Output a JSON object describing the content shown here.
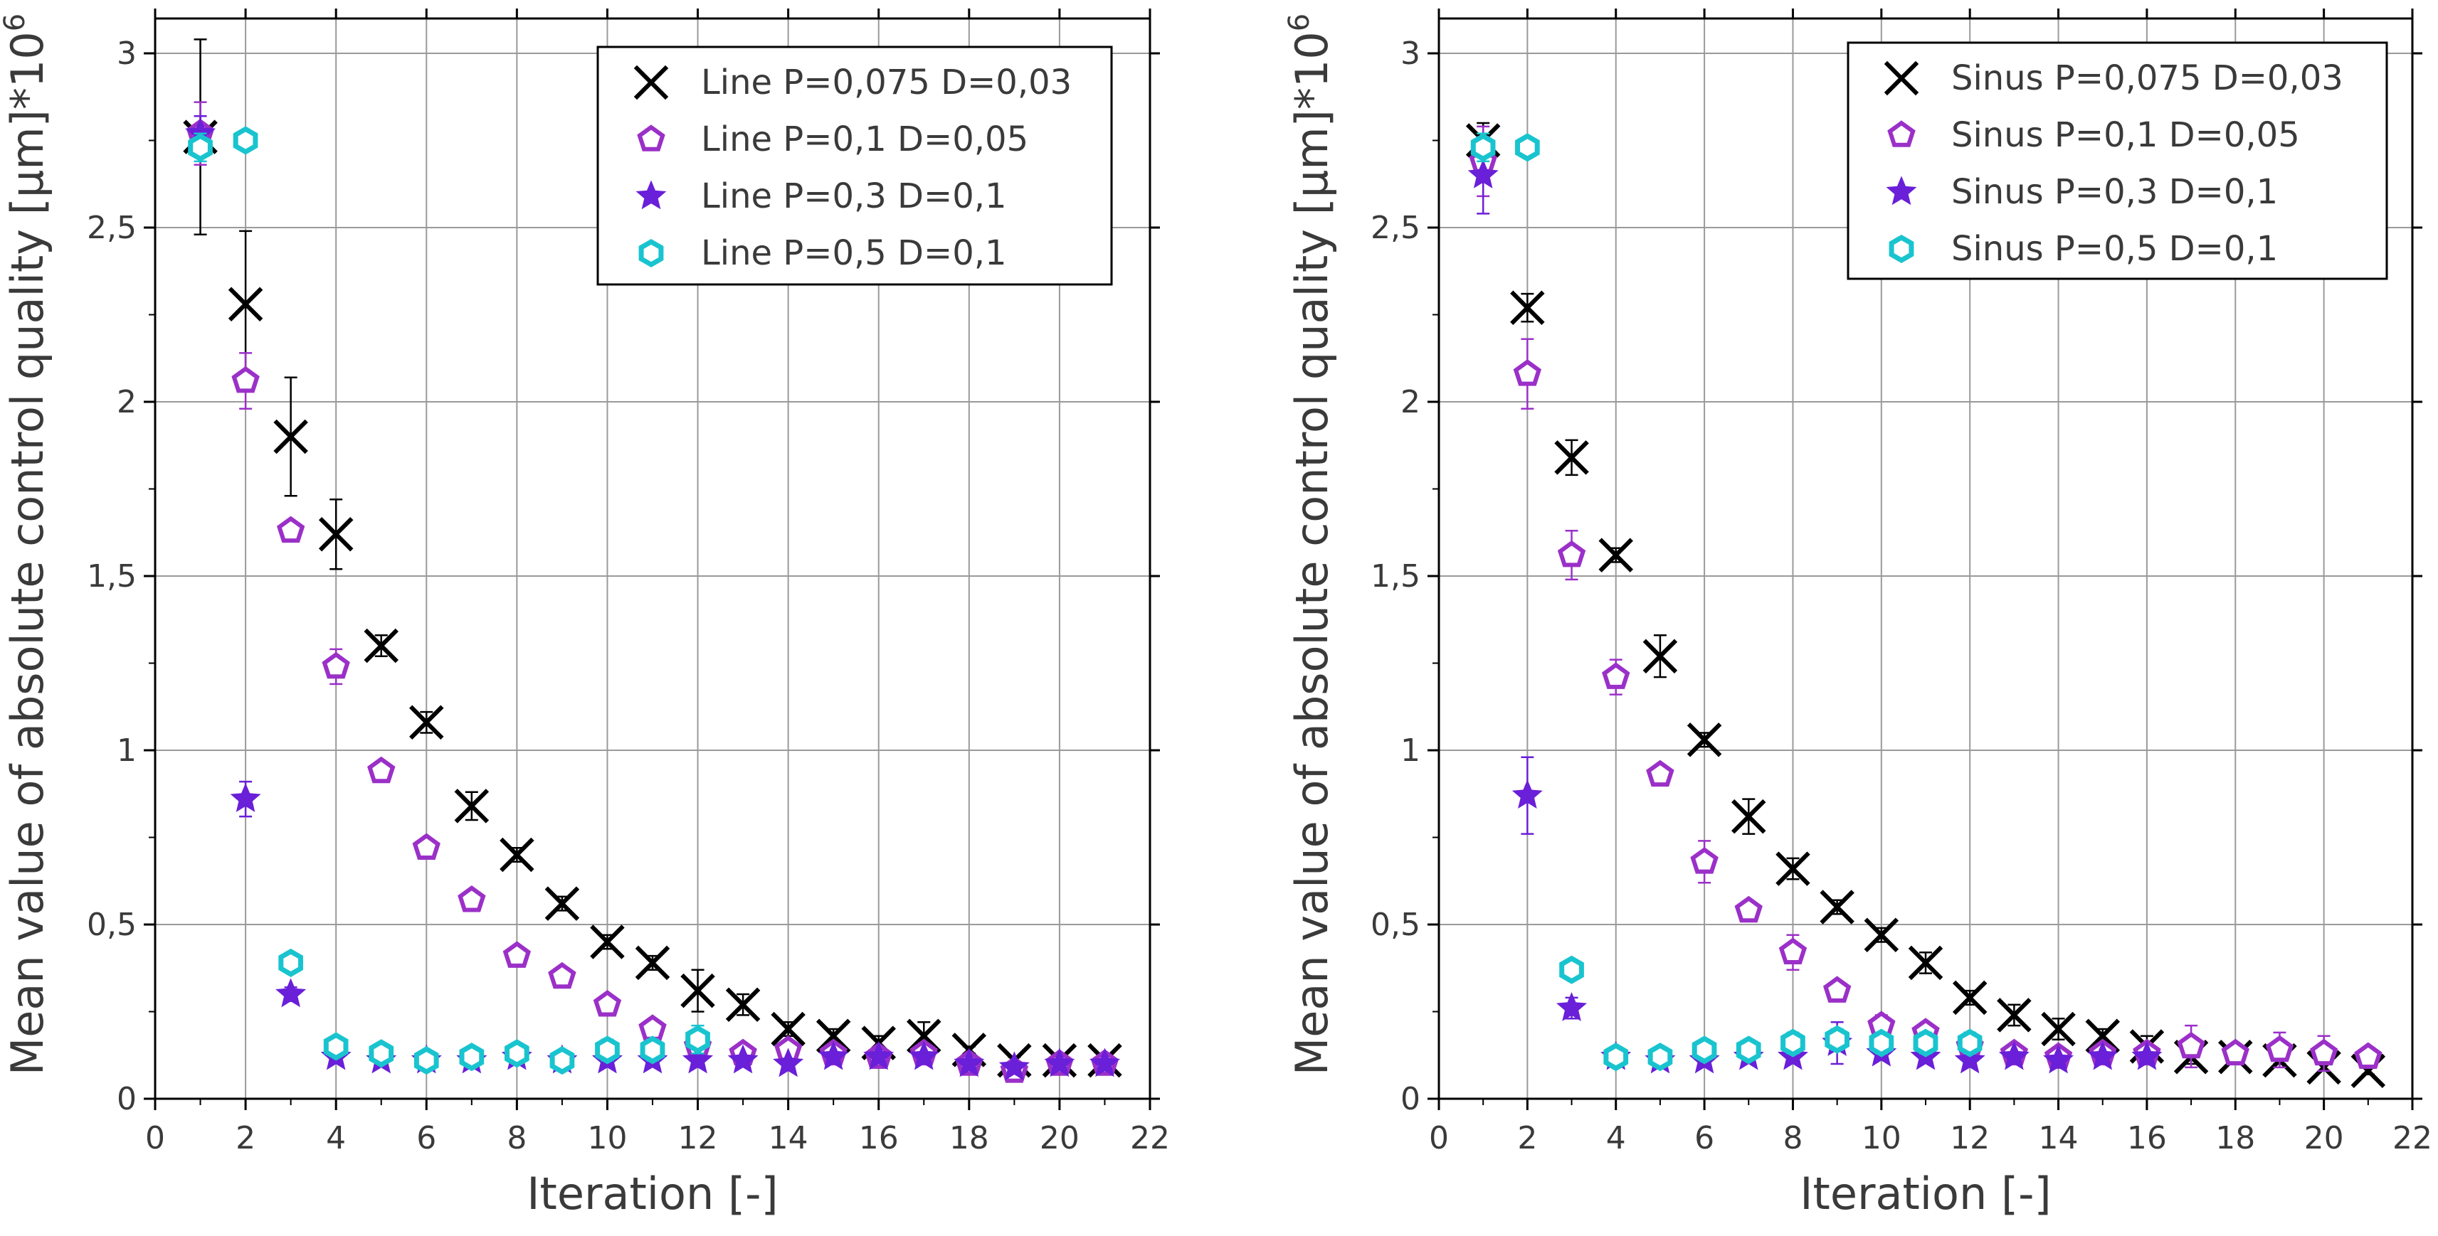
{
  "chart_data": [
    {
      "type": "scatter",
      "xlabel": "Iteration [-]",
      "ylabel": "Mean value of absolute control quality [µm]*10",
      "ylabel_exponent": "6",
      "xlim": [
        0,
        22
      ],
      "ylim": [
        0,
        3.1
      ],
      "x_ticks": [
        0,
        2,
        4,
        6,
        8,
        10,
        12,
        14,
        16,
        18,
        20,
        22
      ],
      "y_ticks": [
        0,
        0.5,
        1,
        1.5,
        2,
        2.5,
        3
      ],
      "y_tick_labels": [
        "0",
        "0,5",
        "1",
        "1,5",
        "2",
        "2,5",
        "3"
      ],
      "grid": true,
      "legend_position": "top-right",
      "series": [
        {
          "name": "Line P=0,075 D=0,03",
          "marker": "x",
          "color": "#000000",
          "x": [
            1,
            2,
            3,
            4,
            5,
            6,
            7,
            8,
            9,
            10,
            11,
            12,
            13,
            14,
            15,
            16,
            17,
            18,
            19,
            20,
            21
          ],
          "y": [
            2.76,
            2.28,
            1.9,
            1.62,
            1.3,
            1.08,
            0.84,
            0.7,
            0.56,
            0.45,
            0.39,
            0.31,
            0.27,
            0.2,
            0.18,
            0.16,
            0.18,
            0.14,
            0.11,
            0.11,
            0.11
          ],
          "err": [
            0.28,
            0.21,
            0.17,
            0.1,
            0.03,
            0.03,
            0.04,
            0.02,
            0.02,
            0.02,
            0.02,
            0.06,
            0.03,
            0.02,
            0.02,
            0.02,
            0.04,
            0.01,
            0.01,
            0.01,
            0.01
          ]
        },
        {
          "name": "Line P=0,1 D=0,05",
          "marker": "pentagon",
          "color": "#9b30c8",
          "x": [
            1,
            2,
            3,
            4,
            5,
            6,
            7,
            8,
            9,
            10,
            11,
            12,
            13,
            14,
            15,
            16,
            17,
            18,
            19,
            20,
            21
          ],
          "y": [
            2.77,
            2.06,
            1.63,
            1.24,
            0.94,
            0.72,
            0.57,
            0.41,
            0.35,
            0.27,
            0.2,
            0.15,
            0.13,
            0.14,
            0.13,
            0.12,
            0.13,
            0.1,
            0.08,
            0.1,
            0.1
          ],
          "err": [
            0.09,
            0.08,
            0.02,
            0.05,
            0.02,
            0.02,
            0.02,
            0.02,
            0.02,
            0.02,
            0.02,
            0.02,
            0.02,
            0.02,
            0.02,
            0.02,
            0.02,
            0.02,
            0.02,
            0.02,
            0.02
          ]
        },
        {
          "name": "Line P=0,3 D=0,1",
          "marker": "star",
          "color": "#6a1fd8",
          "x": [
            1,
            2,
            3,
            4,
            5,
            6,
            7,
            8,
            9,
            10,
            11,
            12,
            13,
            14,
            15,
            16,
            17,
            18,
            19,
            20,
            21
          ],
          "y": [
            2.77,
            0.86,
            0.3,
            0.12,
            0.11,
            0.11,
            0.11,
            0.12,
            0.11,
            0.11,
            0.11,
            0.11,
            0.11,
            0.1,
            0.12,
            0.12,
            0.12,
            0.1,
            0.09,
            0.1,
            0.1
          ],
          "err": [
            0.05,
            0.05,
            0.02,
            0.01,
            0.01,
            0.01,
            0.01,
            0.01,
            0.01,
            0.01,
            0.01,
            0.01,
            0.01,
            0.01,
            0.01,
            0.01,
            0.01,
            0.01,
            0.01,
            0.01,
            0.01
          ]
        },
        {
          "name": "Line P=0,5 D=0,1",
          "marker": "hexagon",
          "color": "#19c4cf",
          "x": [
            1,
            2,
            3,
            4,
            5,
            6,
            7,
            8,
            9,
            10,
            11,
            12
          ],
          "y": [
            2.73,
            2.75,
            0.39,
            0.15,
            0.13,
            0.11,
            0.12,
            0.13,
            0.11,
            0.14,
            0.14,
            0.17
          ],
          "err": [
            0.04,
            0.02,
            0.02,
            0.02,
            0.02,
            0.02,
            0.02,
            0.02,
            0.02,
            0.03,
            0.03,
            0.04
          ]
        }
      ]
    },
    {
      "type": "scatter",
      "xlabel": "Iteration [-]",
      "ylabel": "Mean value of absolute control quality [µm]*10",
      "ylabel_exponent": "6",
      "xlim": [
        0,
        22
      ],
      "ylim": [
        0,
        3.1
      ],
      "x_ticks": [
        0,
        2,
        4,
        6,
        8,
        10,
        12,
        14,
        16,
        18,
        20,
        22
      ],
      "y_ticks": [
        0,
        0.5,
        1,
        1.5,
        2,
        2.5,
        3
      ],
      "y_tick_labels": [
        "0",
        "0,5",
        "1",
        "1,5",
        "2",
        "2,5",
        "3"
      ],
      "grid": true,
      "legend_position": "top-right",
      "series": [
        {
          "name": "Sinus P=0,075 D=0,03",
          "marker": "x",
          "color": "#000000",
          "x": [
            1,
            2,
            3,
            4,
            5,
            6,
            7,
            8,
            9,
            10,
            11,
            12,
            13,
            14,
            15,
            16,
            17,
            18,
            19,
            20,
            21
          ],
          "y": [
            2.75,
            2.27,
            1.84,
            1.56,
            1.27,
            1.03,
            0.81,
            0.66,
            0.55,
            0.47,
            0.39,
            0.29,
            0.24,
            0.2,
            0.18,
            0.15,
            0.12,
            0.12,
            0.11,
            0.09,
            0.08
          ],
          "err": [
            0.05,
            0.04,
            0.05,
            0.02,
            0.06,
            0.02,
            0.05,
            0.03,
            0.02,
            0.02,
            0.03,
            0.02,
            0.03,
            0.03,
            0.02,
            0.03,
            0.02,
            0.01,
            0.01,
            0.01,
            0.01
          ]
        },
        {
          "name": "Sinus P=0,1 D=0,05",
          "marker": "pentagon",
          "color": "#9b30c8",
          "x": [
            1,
            2,
            3,
            4,
            5,
            6,
            7,
            8,
            9,
            10,
            11,
            12,
            13,
            14,
            15,
            16,
            17,
            18,
            19,
            20,
            21
          ],
          "y": [
            2.69,
            2.08,
            1.56,
            1.21,
            0.93,
            0.68,
            0.54,
            0.42,
            0.31,
            0.21,
            0.19,
            0.15,
            0.13,
            0.12,
            0.13,
            0.13,
            0.15,
            0.13,
            0.14,
            0.13,
            0.12
          ],
          "err": [
            0.1,
            0.1,
            0.07,
            0.05,
            0.02,
            0.06,
            0.02,
            0.05,
            0.02,
            0.03,
            0.02,
            0.02,
            0.02,
            0.02,
            0.02,
            0.02,
            0.06,
            0.02,
            0.05,
            0.05,
            0.02
          ]
        },
        {
          "name": "Sinus P=0,3 D=0,1",
          "marker": "star",
          "color": "#6a1fd8",
          "x": [
            1,
            2,
            3,
            4,
            5,
            6,
            7,
            8,
            9,
            10,
            11,
            12,
            13,
            14,
            15,
            16
          ],
          "y": [
            2.65,
            0.87,
            0.26,
            0.12,
            0.11,
            0.11,
            0.12,
            0.12,
            0.16,
            0.13,
            0.12,
            0.11,
            0.12,
            0.11,
            0.12,
            0.12
          ],
          "err": [
            0.11,
            0.11,
            0.03,
            0.01,
            0.01,
            0.01,
            0.01,
            0.01,
            0.06,
            0.01,
            0.01,
            0.01,
            0.01,
            0.01,
            0.01,
            0.01
          ]
        },
        {
          "name": "Sinus P=0,5 D=0,1",
          "marker": "hexagon",
          "color": "#19c4cf",
          "x": [
            1,
            2,
            3,
            4,
            5,
            6,
            7,
            8,
            9,
            10,
            11,
            12
          ],
          "y": [
            2.73,
            2.73,
            0.37,
            0.12,
            0.12,
            0.14,
            0.14,
            0.16,
            0.17,
            0.16,
            0.16,
            0.16
          ],
          "err": [
            0.04,
            0.02,
            0.02,
            0.02,
            0.02,
            0.02,
            0.02,
            0.03,
            0.03,
            0.03,
            0.03,
            0.03
          ]
        }
      ]
    }
  ]
}
